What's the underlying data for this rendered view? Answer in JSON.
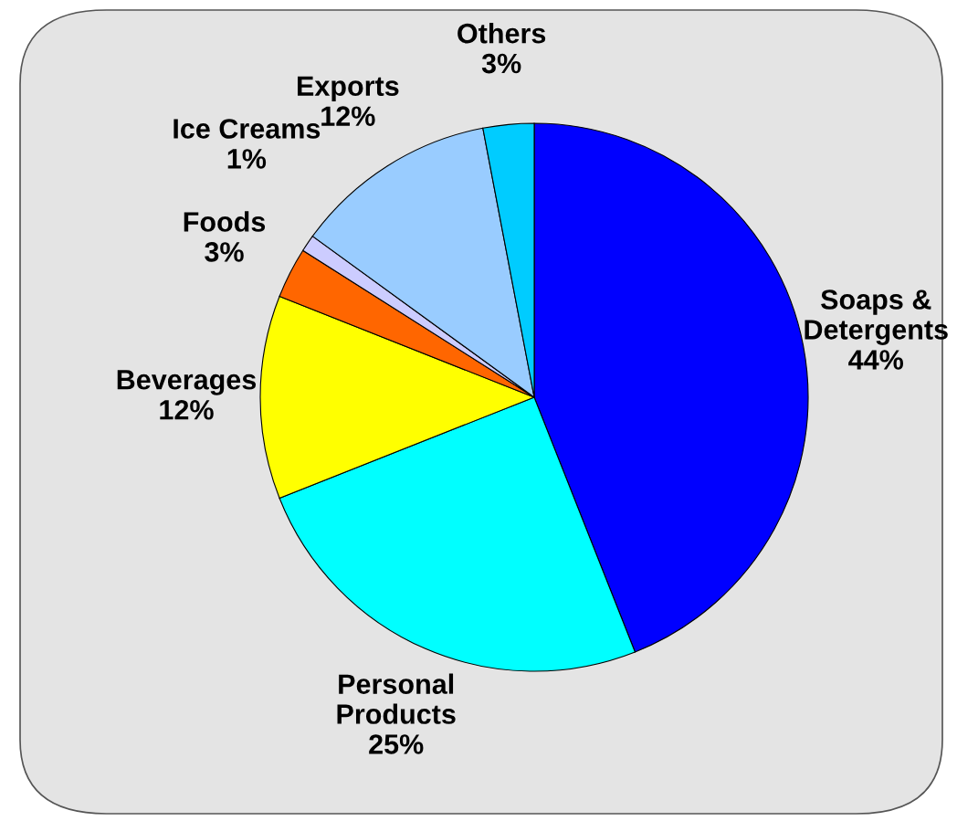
{
  "chart_data": {
    "type": "pie",
    "categories": [
      "Soaps &\nDetergents",
      "Personal\nProducts",
      "Beverages",
      "Foods",
      "Ice Creams",
      "Exports",
      "Others"
    ],
    "values": [
      44,
      25,
      12,
      3,
      1,
      12,
      3
    ],
    "value_labels": [
      "44%",
      "25%",
      "12%",
      "3%",
      "1%",
      "12%",
      "3%"
    ],
    "colors": [
      "#0000ff",
      "#00ffff",
      "#ffff00",
      "#ff6600",
      "#ccccff",
      "#99ccff",
      "#00ccff"
    ],
    "legend": false
  }
}
